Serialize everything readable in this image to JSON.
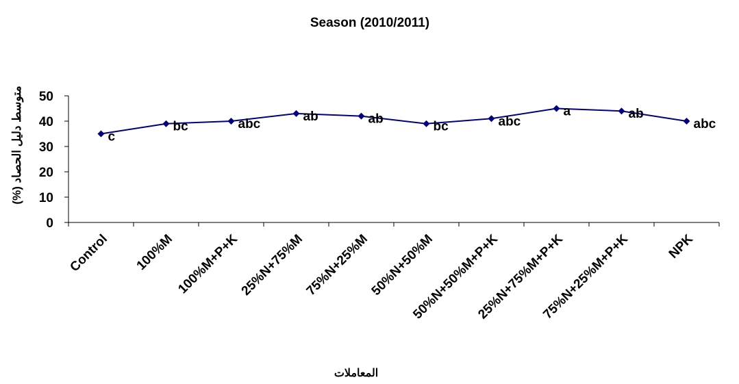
{
  "chart_data": {
    "type": "line",
    "title": "Season (2010/2011)",
    "xlabel": "المعاملات",
    "ylabel": "متوسط دليل الحصاد (%)",
    "categories": [
      "Control",
      "100%M",
      "100%M+P+K",
      "25%N+75%M",
      "75%N+25%M",
      "50%N+50%M",
      "50%N+50%M+P+K",
      "25%N+75%M+P+K",
      "75%N+25%M+P+K",
      "NPK"
    ],
    "series": [
      {
        "values": [
          35,
          39,
          40,
          43,
          42,
          39,
          41,
          45,
          44,
          40
        ],
        "labels": [
          "c",
          "bc",
          "abc",
          "ab",
          "ab",
          "bc",
          "abc",
          "a",
          "ab",
          "abc"
        ],
        "color": "#000080"
      }
    ],
    "ylim": [
      0,
      50
    ],
    "yticks": [
      0,
      10,
      20,
      30,
      40,
      50
    ],
    "grid": false,
    "legend": "none"
  }
}
